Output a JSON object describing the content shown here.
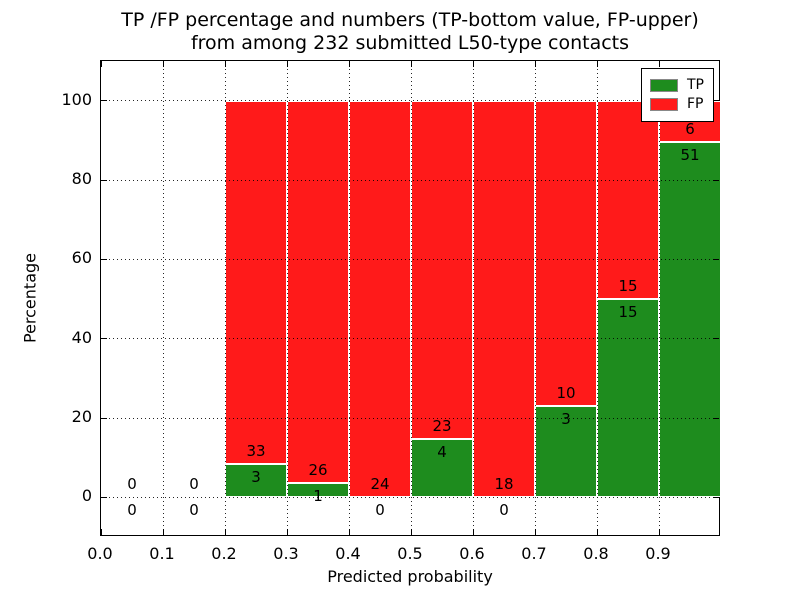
{
  "chart_data": {
    "type": "bar",
    "stacked": true,
    "orientation": "vertical",
    "title_lines": [
      "TP /FP percentage and numbers (TP-bottom value, FP-upper)",
      "from among 232 submitted L50-type contacts"
    ],
    "xlabel": "Predicted probability",
    "ylabel": "Percentage",
    "xlim": [
      0.0,
      1.0
    ],
    "ylim": [
      -10,
      110
    ],
    "x_ticks": {
      "values": [
        0.0,
        0.1,
        0.2,
        0.3,
        0.4,
        0.5,
        0.6,
        0.7,
        0.8,
        0.9
      ],
      "labels": [
        "0.0",
        "0.1",
        "0.2",
        "0.3",
        "0.4",
        "0.5",
        "0.6",
        "0.7",
        "0.8",
        "0.9"
      ]
    },
    "y_ticks": {
      "values": [
        0,
        20,
        40,
        60,
        80,
        100
      ],
      "labels": [
        "0",
        "20",
        "40",
        "60",
        "80",
        "100"
      ]
    },
    "grid": "dotted-both-axes-over-bars",
    "legend_position": "upper-right",
    "legend": [
      {
        "label": "TP",
        "color": "#1e8c1e"
      },
      {
        "label": "FP",
        "color": "#ff1a1a"
      }
    ],
    "total_contacts": 232,
    "bins": [
      {
        "x0": 0.0,
        "x1": 0.1,
        "tp": 0,
        "fp": 0,
        "tp_pct": 0,
        "fp_pct": 0
      },
      {
        "x0": 0.1,
        "x1": 0.2,
        "tp": 0,
        "fp": 0,
        "tp_pct": 0,
        "fp_pct": 0
      },
      {
        "x0": 0.2,
        "x1": 0.3,
        "tp": 3,
        "fp": 33,
        "tp_pct": 8.33,
        "fp_pct": 91.67
      },
      {
        "x0": 0.3,
        "x1": 0.4,
        "tp": 1,
        "fp": 26,
        "tp_pct": 3.7,
        "fp_pct": 96.3
      },
      {
        "x0": 0.4,
        "x1": 0.5,
        "tp": 0,
        "fp": 24,
        "tp_pct": 0,
        "fp_pct": 100
      },
      {
        "x0": 0.5,
        "x1": 0.6,
        "tp": 4,
        "fp": 23,
        "tp_pct": 14.81,
        "fp_pct": 85.19
      },
      {
        "x0": 0.6,
        "x1": 0.7,
        "tp": 0,
        "fp": 18,
        "tp_pct": 0,
        "fp_pct": 100
      },
      {
        "x0": 0.7,
        "x1": 0.8,
        "tp": 3,
        "fp": 10,
        "tp_pct": 23.08,
        "fp_pct": 76.92
      },
      {
        "x0": 0.8,
        "x1": 0.9,
        "tp": 15,
        "fp": 15,
        "tp_pct": 50,
        "fp_pct": 50
      },
      {
        "x0": 0.9,
        "x1": 1.0,
        "tp": 51,
        "fp": 6,
        "tp_pct": 89.47,
        "fp_pct": 10.53
      }
    ]
  }
}
